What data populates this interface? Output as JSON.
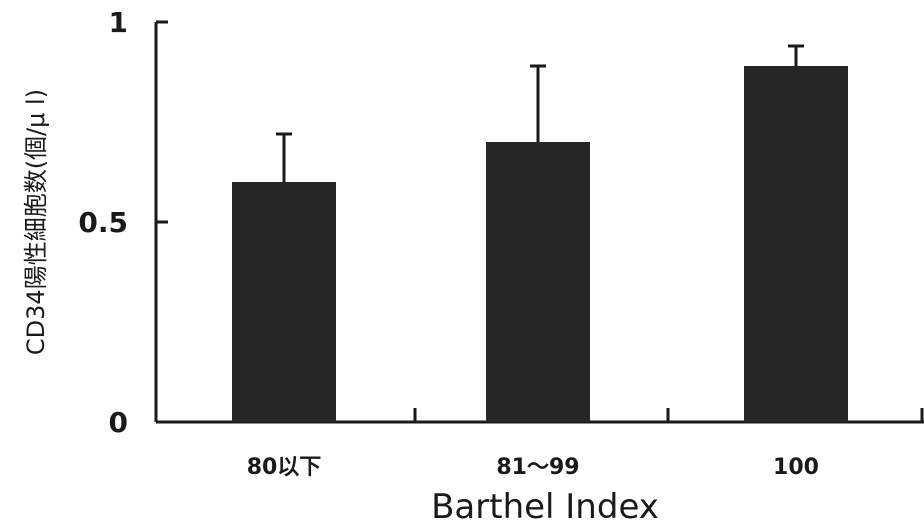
{
  "chart_data": {
    "type": "bar",
    "categories": [
      "80以下",
      "81～99",
      "100"
    ],
    "values": [
      0.6,
      0.7,
      0.89
    ],
    "error_upper": [
      0.72,
      0.89,
      0.94
    ],
    "ylim": [
      0,
      1
    ],
    "yticks": [
      "0",
      "0.5",
      "1"
    ],
    "xlabel": "Barthel Index",
    "ylabel": "CD34陽性細胞数(個/μ l)",
    "grid": false,
    "colors": {
      "bar": "#262626",
      "axis": "#1a1a1a"
    }
  }
}
